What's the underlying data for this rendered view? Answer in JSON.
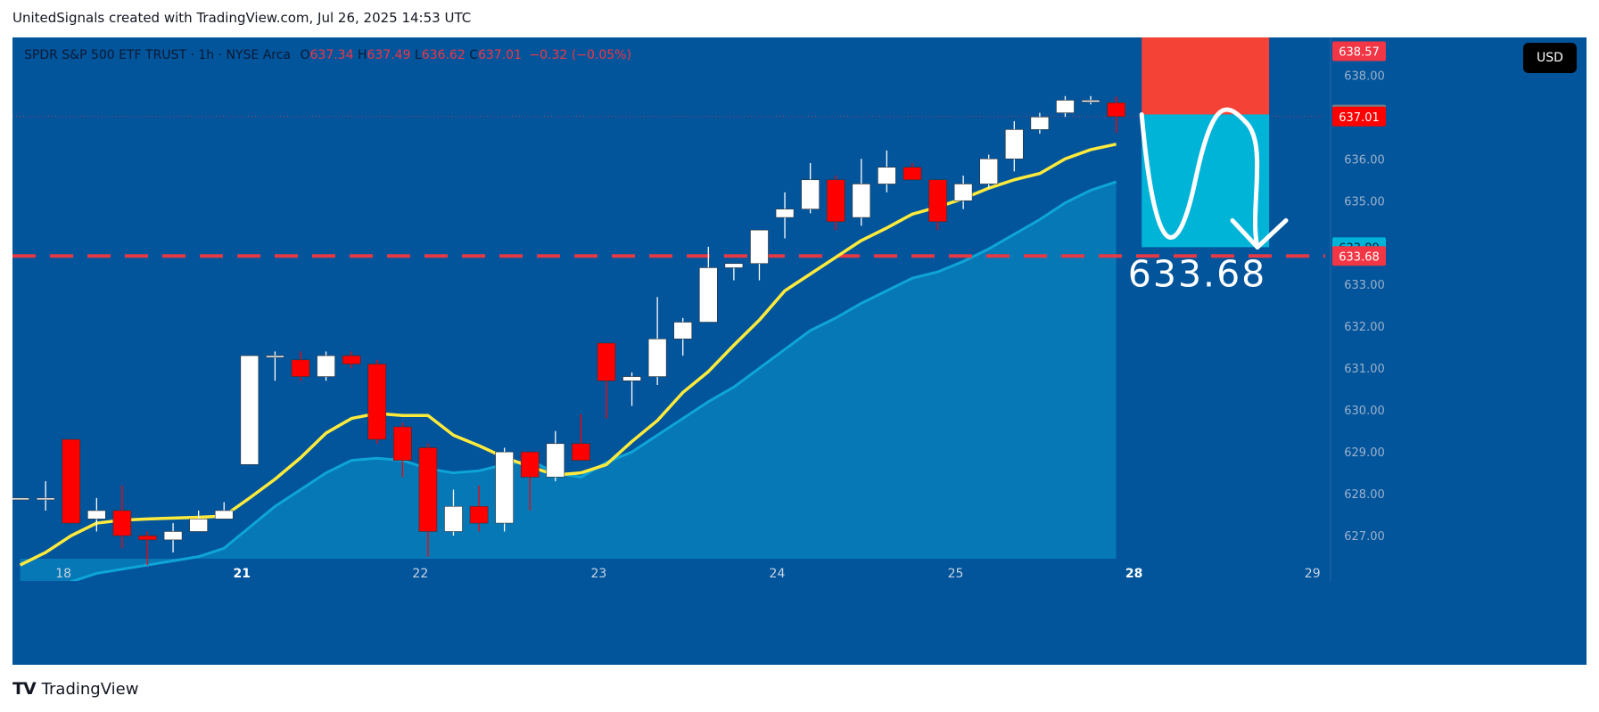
{
  "caption": "UnitedSignals created with TradingView.com, Jul 26, 2025 14:53 UTC",
  "legend": {
    "symbol": "SPDR S&P 500 ETF TRUST · 1h · NYSE Arca",
    "o_label": "O",
    "o": "637.34",
    "h_label": "H",
    "h": "637.49",
    "l_label": "L",
    "l": "636.62",
    "c_label": "C",
    "c": "637.01",
    "change": "−0.32 (−0.05%)"
  },
  "currency_button": "USD",
  "footer": {
    "logo_mark": "TV",
    "brand": "TradingView"
  },
  "colors": {
    "background": "#02549b",
    "up_candle": "#ffffff",
    "down_candle": "#ff0000",
    "ma_fast": "#ffeb3b",
    "ma_area": "#0ea5d8",
    "stop_zone": "#f44336",
    "target_zone": "#00b4d8",
    "level_line": "#e53945"
  },
  "chart_data": {
    "type": "candlestick",
    "title": "SPDR S&P 500 ETF TRUST · 1h · NYSE Arca",
    "ylim": [
      626.45,
      638.9
    ],
    "y_ticks": [
      627,
      628,
      629,
      630,
      631,
      632,
      633,
      634,
      635,
      636,
      637,
      638
    ],
    "x_tick_labels": [
      {
        "label": "18",
        "x": 1.7
      },
      {
        "label": "21",
        "x": 8.7
      },
      {
        "label": "22",
        "x": 15.7
      },
      {
        "label": "23",
        "x": 22.7
      },
      {
        "label": "24",
        "x": 29.7
      },
      {
        "label": "25",
        "x": 36.7
      },
      {
        "label": "28",
        "x": 43.7
      },
      {
        "label": "29",
        "x": 50.7
      }
    ],
    "bold_x_ticks": [
      "21",
      "28"
    ],
    "x_range": [
      -0.3,
      51.2
    ],
    "candles": [
      {
        "o": 627.9,
        "h": 627.9,
        "l": 627.9,
        "c": 627.9
      },
      {
        "o": 627.9,
        "h": 628.3,
        "l": 627.6,
        "c": 627.9
      },
      {
        "o": 629.3,
        "h": 629.3,
        "l": 627.3,
        "c": 627.3
      },
      {
        "o": 627.4,
        "h": 627.9,
        "l": 627.1,
        "c": 627.6
      },
      {
        "o": 627.6,
        "h": 628.2,
        "l": 626.7,
        "c": 627.0
      },
      {
        "o": 627.0,
        "h": 627.1,
        "l": 626.3,
        "c": 626.9
      },
      {
        "o": 626.9,
        "h": 627.3,
        "l": 626.6,
        "c": 627.1
      },
      {
        "o": 627.1,
        "h": 627.6,
        "l": 627.1,
        "c": 627.4
      },
      {
        "o": 627.4,
        "h": 627.8,
        "l": 627.4,
        "c": 627.6
      },
      {
        "o": 628.7,
        "h": 631.3,
        "l": 628.7,
        "c": 631.3
      },
      {
        "o": 631.3,
        "h": 631.4,
        "l": 630.7,
        "c": 631.3
      },
      {
        "o": 631.2,
        "h": 631.4,
        "l": 630.7,
        "c": 630.8
      },
      {
        "o": 630.8,
        "h": 631.4,
        "l": 630.7,
        "c": 631.3
      },
      {
        "o": 631.3,
        "h": 631.4,
        "l": 631.0,
        "c": 631.1
      },
      {
        "o": 631.1,
        "h": 631.2,
        "l": 629.2,
        "c": 629.3
      },
      {
        "o": 629.6,
        "h": 629.7,
        "l": 628.4,
        "c": 628.8
      },
      {
        "o": 629.1,
        "h": 629.2,
        "l": 626.5,
        "c": 627.1
      },
      {
        "o": 627.1,
        "h": 628.1,
        "l": 627.0,
        "c": 627.7
      },
      {
        "o": 627.7,
        "h": 628.2,
        "l": 627.1,
        "c": 627.3
      },
      {
        "o": 627.3,
        "h": 629.1,
        "l": 627.1,
        "c": 629.0
      },
      {
        "o": 629.0,
        "h": 629.0,
        "l": 627.6,
        "c": 628.4
      },
      {
        "o": 628.4,
        "h": 629.5,
        "l": 628.3,
        "c": 629.2
      },
      {
        "o": 629.2,
        "h": 629.9,
        "l": 628.8,
        "c": 628.8
      },
      {
        "o": 631.6,
        "h": 631.6,
        "l": 629.8,
        "c": 630.7
      },
      {
        "o": 630.7,
        "h": 630.9,
        "l": 630.1,
        "c": 630.8
      },
      {
        "o": 630.8,
        "h": 632.7,
        "l": 630.6,
        "c": 631.7
      },
      {
        "o": 631.7,
        "h": 632.2,
        "l": 631.3,
        "c": 632.1
      },
      {
        "o": 632.1,
        "h": 633.9,
        "l": 632.1,
        "c": 633.4
      },
      {
        "o": 633.4,
        "h": 633.5,
        "l": 633.1,
        "c": 633.5
      },
      {
        "o": 633.5,
        "h": 634.3,
        "l": 633.1,
        "c": 634.3
      },
      {
        "o": 634.6,
        "h": 635.2,
        "l": 634.1,
        "c": 634.8
      },
      {
        "o": 634.8,
        "h": 635.9,
        "l": 634.7,
        "c": 635.5
      },
      {
        "o": 635.5,
        "h": 635.6,
        "l": 634.3,
        "c": 634.5
      },
      {
        "o": 634.6,
        "h": 636.0,
        "l": 634.4,
        "c": 635.4
      },
      {
        "o": 635.4,
        "h": 636.2,
        "l": 635.2,
        "c": 635.8
      },
      {
        "o": 635.8,
        "h": 635.9,
        "l": 635.5,
        "c": 635.5
      },
      {
        "o": 635.5,
        "h": 635.5,
        "l": 634.3,
        "c": 634.5
      },
      {
        "o": 635.0,
        "h": 635.6,
        "l": 634.8,
        "c": 635.4
      },
      {
        "o": 635.4,
        "h": 636.1,
        "l": 635.3,
        "c": 636.0
      },
      {
        "o": 636.0,
        "h": 636.9,
        "l": 635.7,
        "c": 636.7
      },
      {
        "o": 636.7,
        "h": 637.1,
        "l": 636.6,
        "c": 637.0
      },
      {
        "o": 637.1,
        "h": 637.5,
        "l": 637.0,
        "c": 637.4
      },
      {
        "o": 637.4,
        "h": 637.5,
        "l": 637.3,
        "c": 637.4
      },
      {
        "o": 637.34,
        "h": 637.49,
        "l": 636.62,
        "c": 637.01
      }
    ],
    "ma_fast": {
      "name": "",
      "values": [
        626.3,
        626.6,
        627.0,
        627.3,
        627.37,
        627.4,
        627.42,
        627.44,
        627.47,
        627.9,
        628.35,
        628.86,
        629.45,
        629.8,
        629.92,
        629.87,
        629.87,
        629.4,
        629.15,
        628.87,
        628.65,
        628.45,
        628.5,
        628.7,
        629.25,
        629.75,
        630.42,
        630.92,
        631.55,
        632.15,
        632.85,
        633.25,
        633.65,
        634.05,
        634.35,
        634.68,
        634.85,
        635.05,
        635.3,
        635.5,
        635.65,
        636.0,
        636.22,
        636.35
      ]
    },
    "ma_area": {
      "name": "",
      "values": [
        625.5,
        625.7,
        625.9,
        626.1,
        626.2,
        626.3,
        626.4,
        626.5,
        626.7,
        627.2,
        627.7,
        628.1,
        628.5,
        628.8,
        628.85,
        628.8,
        628.6,
        628.5,
        628.55,
        628.7,
        628.8,
        628.5,
        628.4,
        628.75,
        629.0,
        629.4,
        629.8,
        630.2,
        630.55,
        631.0,
        631.45,
        631.9,
        632.2,
        632.55,
        632.85,
        633.15,
        633.3,
        633.55,
        633.85,
        634.2,
        634.55,
        634.95,
        635.25,
        635.45
      ]
    },
    "trade_setup": {
      "stop_top": 638.9,
      "entry": 637.06,
      "target": 633.89,
      "zone_start_x": 44.0,
      "zone_end_x": 49.0,
      "target_text": "633.68"
    },
    "horizontal_level": 633.68,
    "price_tags": [
      {
        "label": "638.57",
        "value": 638.57,
        "bg": "#f23645",
        "fg": "#ffffff"
      },
      {
        "label": "637.06",
        "value": 637.06,
        "bg": "#787b86",
        "fg": "#ffffff"
      },
      {
        "label": "637.01",
        "value": 637.01,
        "bg": "#ff0000",
        "fg": "#ffffff"
      },
      {
        "label": "633.89",
        "value": 633.89,
        "bg": "#00b4d8",
        "fg": "#0b1a33"
      },
      {
        "label": "633.68",
        "value": 633.68,
        "bg": "#f23645",
        "fg": "#ffffff"
      }
    ]
  }
}
